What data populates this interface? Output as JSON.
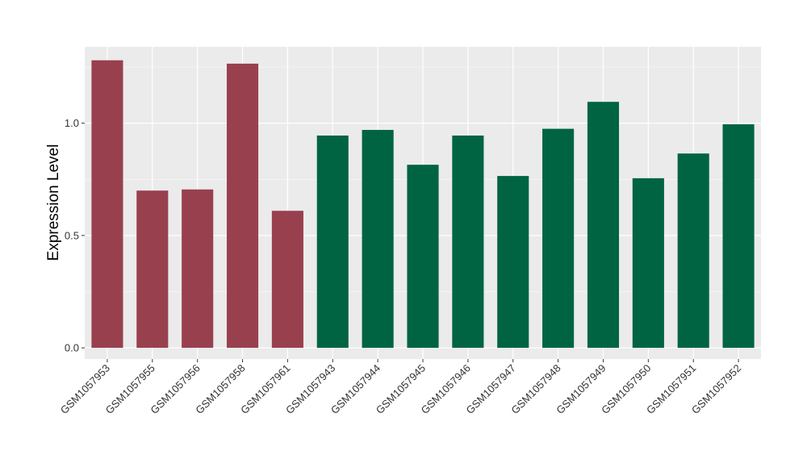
{
  "colors": {
    "panel_bg": "#EBEBEB",
    "grid_major": "#FFFFFF",
    "tick": "#333333",
    "group_a": "#99404F",
    "group_b": "#006442"
  },
  "chart_data": {
    "type": "bar",
    "title": "",
    "xlabel": "",
    "ylabel": "Expression Level",
    "ylim": [
      -0.05,
      1.34
    ],
    "yticks": [
      0.0,
      0.5,
      1.0
    ],
    "ytick_labels": [
      "0.0",
      "0.5",
      "1.0"
    ],
    "grid": true,
    "legend": "none",
    "categories": [
      "GSM1057953",
      "GSM1057955",
      "GSM1057956",
      "GSM1057958",
      "GSM1057961",
      "GSM1057943",
      "GSM1057944",
      "GSM1057945",
      "GSM1057946",
      "GSM1057947",
      "GSM1057948",
      "GSM1057949",
      "GSM1057950",
      "GSM1057951",
      "GSM1057952"
    ],
    "values": [
      1.28,
      0.7,
      0.705,
      1.265,
      0.61,
      0.945,
      0.97,
      0.815,
      0.945,
      0.765,
      0.975,
      1.095,
      0.755,
      0.865,
      0.995
    ],
    "bar_colors": [
      "#99404F",
      "#99404F",
      "#99404F",
      "#99404F",
      "#99404F",
      "#006442",
      "#006442",
      "#006442",
      "#006442",
      "#006442",
      "#006442",
      "#006442",
      "#006442",
      "#006442",
      "#006442"
    ]
  }
}
